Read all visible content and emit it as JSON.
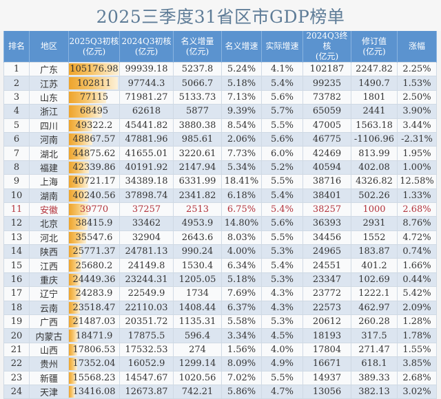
{
  "title": "2025三季度31省区市GDP榜单",
  "colors": {
    "header_bg": "#5b93cf",
    "row_even_bg": "#dce5f0",
    "row_odd_bg": "#f9fafb",
    "highlight_text": "#b2323b",
    "databar_start": "#eea42c",
    "databar_end": "#fdf1d8",
    "title_text": "#5e7c97"
  },
  "chart_data": {
    "type": "table",
    "title": "2025三季度31省区市GDP榜单",
    "columns": [
      {
        "label": "排名",
        "unit": ""
      },
      {
        "label": "地区",
        "unit": ""
      },
      {
        "label": "2025Q3初核",
        "unit": "(亿元)"
      },
      {
        "label": "2024Q3初核",
        "unit": "(亿元)"
      },
      {
        "label": "名义增量",
        "unit": "(亿元)"
      },
      {
        "label": "名义增速",
        "unit": ""
      },
      {
        "label": "实际增速",
        "unit": ""
      },
      {
        "label": "2024Q3终核",
        "unit": "(亿元)"
      },
      {
        "label": "修订值",
        "unit": "(亿元)"
      },
      {
        "label": "涨幅",
        "unit": ""
      }
    ],
    "databar_column_index": 2,
    "databar_max": 105176.98,
    "highlight_rank": "11",
    "rows": [
      [
        "1",
        "广东",
        "105176.98",
        "99939.18",
        "5237.8",
        "5.24%",
        "4.1%",
        "102187",
        "2247.82",
        "2.25%"
      ],
      [
        "2",
        "江苏",
        "102811",
        "97744.3",
        "5066.7",
        "5.18%",
        "5.4%",
        "99235",
        "1490.7",
        "1.53%"
      ],
      [
        "3",
        "山东",
        "77115",
        "71981.27",
        "5133.73",
        "7.13%",
        "5.6%",
        "73782",
        "1801",
        "2.50%"
      ],
      [
        "4",
        "浙江",
        "68495",
        "62618",
        "5877",
        "9.39%",
        "5.7%",
        "65059",
        "2441",
        "3.90%"
      ],
      [
        "5",
        "四川",
        "49322.2",
        "45441.82",
        "3880.38",
        "8.54%",
        "5.5%",
        "47005",
        "1563.18",
        "3.44%"
      ],
      [
        "6",
        "河南",
        "48867.57",
        "47881.96",
        "985.61",
        "2.06%",
        "5.6%",
        "46775",
        "-1106.96",
        "-2.31%"
      ],
      [
        "7",
        "湖北",
        "44875.62",
        "41655.01",
        "3220.61",
        "7.73%",
        "6.0%",
        "42469",
        "813.99",
        "1.95%"
      ],
      [
        "8",
        "福建",
        "42339.86",
        "40191.92",
        "2147.94",
        "5.34%",
        "5.2%",
        "40594",
        "402.08",
        "1.00%"
      ],
      [
        "9",
        "上海",
        "40721.17",
        "34389.18",
        "6331.99",
        "18.41%",
        "5.5%",
        "38716",
        "4326.82",
        "12.58%"
      ],
      [
        "10",
        "湖南",
        "40240.56",
        "37898.74",
        "2341.82",
        "6.18%",
        "5.4%",
        "38401",
        "502.26",
        "1.33%"
      ],
      [
        "11",
        "安徽",
        "39770",
        "37257",
        "2513",
        "6.75%",
        "5.4%",
        "38257",
        "1000",
        "2.68%"
      ],
      [
        "12",
        "北京",
        "38415.9",
        "33462",
        "4953.9",
        "14.80%",
        "5.6%",
        "36393",
        "2931",
        "8.76%"
      ],
      [
        "13",
        "河北",
        "35547.6",
        "32904",
        "2643.6",
        "8.03%",
        "5.5%",
        "34456",
        "1552",
        "4.72%"
      ],
      [
        "14",
        "陕西",
        "25771.37",
        "24781.13",
        "990.24",
        "4.00%",
        "5.3%",
        "24965",
        "183.87",
        "0.74%"
      ],
      [
        "15",
        "江西",
        "25680.2",
        "24149.8",
        "1530.4",
        "6.34%",
        "5.4%",
        "24551",
        "401.2",
        "1.66%"
      ],
      [
        "16",
        "重庆",
        "24449.36",
        "23244.31",
        "1205.05",
        "5.18%",
        "5.3%",
        "23347",
        "102.69",
        "0.44%"
      ],
      [
        "17",
        "辽宁",
        "24283.9",
        "22549.9",
        "1734",
        "7.69%",
        "4.3%",
        "23772",
        "1222.1",
        "5.42%"
      ],
      [
        "18",
        "云南",
        "23518.47",
        "22110.03",
        "1408.44",
        "6.37%",
        "4.3%",
        "22573",
        "462.97",
        "2.09%"
      ],
      [
        "19",
        "广西",
        "21487.03",
        "20351.72",
        "1135.31",
        "5.58%",
        "5.3%",
        "20612",
        "260.28",
        "1.28%"
      ],
      [
        "20",
        "内蒙古",
        "18471.9",
        "17875.5",
        "596.4",
        "3.34%",
        "4.5%",
        "18193",
        "317.5",
        "1.78%"
      ],
      [
        "21",
        "山西",
        "17806.53",
        "17532.53",
        "274",
        "1.56%",
        "4.0%",
        "17804",
        "271.47",
        "1.55%"
      ],
      [
        "22",
        "贵州",
        "17352.04",
        "16052.9",
        "1299.14",
        "8.09%",
        "4.9%",
        "16671",
        "618.1",
        "3.85%"
      ],
      [
        "23",
        "新疆",
        "15568.23",
        "14547.67",
        "1020.56",
        "7.02%",
        "5.5%",
        "14937",
        "389.33",
        "2.68%"
      ],
      [
        "24",
        "天津",
        "13416.08",
        "12673.87",
        "742.21",
        "5.86%",
        "4.7%",
        "13056",
        "382.13",
        "3.02%"
      ]
    ]
  }
}
